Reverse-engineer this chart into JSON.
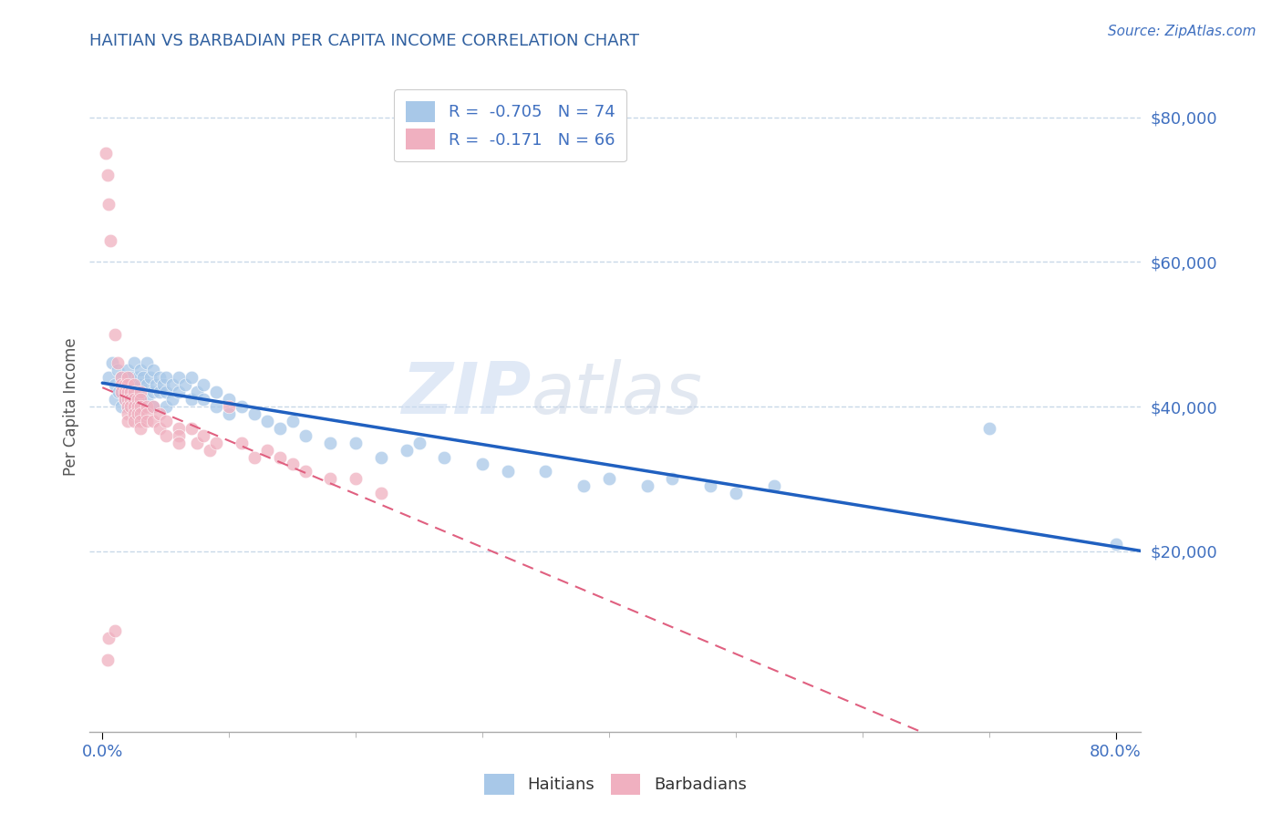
{
  "title": "HAITIAN VS BARBADIAN PER CAPITA INCOME CORRELATION CHART",
  "source": "Source: ZipAtlas.com",
  "ylabel": "Per Capita Income",
  "xlim": [
    -0.01,
    0.82
  ],
  "ylim": [
    -5000,
    85000
  ],
  "yticks": [
    20000,
    40000,
    60000,
    80000
  ],
  "yticklabels": [
    "$20,000",
    "$40,000",
    "$60,000",
    "$80,000"
  ],
  "grid_color": "#c8d8e8",
  "background_color": "#ffffff",
  "watermark_zip": "ZIP",
  "watermark_atlas": "atlas",
  "haitian_color": "#a8c8e8",
  "barbadian_color": "#f0b0c0",
  "haitian_line_color": "#2060c0",
  "barbadian_line_color": "#e06080",
  "title_color": "#3060a0",
  "source_color": "#4070c0",
  "axis_label_color": "#555555",
  "tick_color": "#4070c0",
  "legend_label_color": "#333333",
  "haitian_points": [
    [
      0.005,
      44000
    ],
    [
      0.008,
      46000
    ],
    [
      0.01,
      43000
    ],
    [
      0.01,
      41000
    ],
    [
      0.012,
      45000
    ],
    [
      0.013,
      42000
    ],
    [
      0.015,
      44000
    ],
    [
      0.015,
      40000
    ],
    [
      0.017,
      43000
    ],
    [
      0.018,
      41000
    ],
    [
      0.02,
      45000
    ],
    [
      0.02,
      43000
    ],
    [
      0.02,
      40000
    ],
    [
      0.022,
      44000
    ],
    [
      0.022,
      42000
    ],
    [
      0.025,
      46000
    ],
    [
      0.025,
      43000
    ],
    [
      0.025,
      41000
    ],
    [
      0.028,
      44000
    ],
    [
      0.028,
      42000
    ],
    [
      0.03,
      45000
    ],
    [
      0.03,
      43000
    ],
    [
      0.03,
      41000
    ],
    [
      0.032,
      44000
    ],
    [
      0.035,
      46000
    ],
    [
      0.035,
      43000
    ],
    [
      0.035,
      41000
    ],
    [
      0.038,
      44000
    ],
    [
      0.04,
      45000
    ],
    [
      0.04,
      42000
    ],
    [
      0.04,
      40000
    ],
    [
      0.042,
      43000
    ],
    [
      0.045,
      44000
    ],
    [
      0.045,
      42000
    ],
    [
      0.048,
      43000
    ],
    [
      0.05,
      44000
    ],
    [
      0.05,
      42000
    ],
    [
      0.05,
      40000
    ],
    [
      0.055,
      43000
    ],
    [
      0.055,
      41000
    ],
    [
      0.06,
      44000
    ],
    [
      0.06,
      42000
    ],
    [
      0.065,
      43000
    ],
    [
      0.07,
      44000
    ],
    [
      0.07,
      41000
    ],
    [
      0.075,
      42000
    ],
    [
      0.08,
      43000
    ],
    [
      0.08,
      41000
    ],
    [
      0.09,
      42000
    ],
    [
      0.09,
      40000
    ],
    [
      0.1,
      41000
    ],
    [
      0.1,
      39000
    ],
    [
      0.11,
      40000
    ],
    [
      0.12,
      39000
    ],
    [
      0.13,
      38000
    ],
    [
      0.14,
      37000
    ],
    [
      0.15,
      38000
    ],
    [
      0.16,
      36000
    ],
    [
      0.18,
      35000
    ],
    [
      0.2,
      35000
    ],
    [
      0.22,
      33000
    ],
    [
      0.24,
      34000
    ],
    [
      0.25,
      35000
    ],
    [
      0.27,
      33000
    ],
    [
      0.3,
      32000
    ],
    [
      0.32,
      31000
    ],
    [
      0.35,
      31000
    ],
    [
      0.38,
      29000
    ],
    [
      0.4,
      30000
    ],
    [
      0.43,
      29000
    ],
    [
      0.45,
      30000
    ],
    [
      0.48,
      29000
    ],
    [
      0.5,
      28000
    ],
    [
      0.53,
      29000
    ],
    [
      0.7,
      37000
    ],
    [
      0.8,
      21000
    ]
  ],
  "barbadian_points": [
    [
      0.003,
      75000
    ],
    [
      0.004,
      72000
    ],
    [
      0.005,
      68000
    ],
    [
      0.006,
      63000
    ],
    [
      0.01,
      50000
    ],
    [
      0.012,
      46000
    ],
    [
      0.015,
      44000
    ],
    [
      0.015,
      43000
    ],
    [
      0.015,
      42000
    ],
    [
      0.018,
      43000
    ],
    [
      0.018,
      42000
    ],
    [
      0.018,
      41000
    ],
    [
      0.02,
      44000
    ],
    [
      0.02,
      43000
    ],
    [
      0.02,
      42000
    ],
    [
      0.02,
      41000
    ],
    [
      0.02,
      40000
    ],
    [
      0.02,
      39000
    ],
    [
      0.02,
      38000
    ],
    [
      0.022,
      42000
    ],
    [
      0.022,
      41000
    ],
    [
      0.022,
      40000
    ],
    [
      0.025,
      43000
    ],
    [
      0.025,
      42000
    ],
    [
      0.025,
      41000
    ],
    [
      0.025,
      40000
    ],
    [
      0.025,
      39000
    ],
    [
      0.025,
      38000
    ],
    [
      0.028,
      41000
    ],
    [
      0.028,
      40000
    ],
    [
      0.028,
      39000
    ],
    [
      0.03,
      42000
    ],
    [
      0.03,
      41000
    ],
    [
      0.03,
      40000
    ],
    [
      0.03,
      39000
    ],
    [
      0.03,
      38000
    ],
    [
      0.03,
      37000
    ],
    [
      0.035,
      40000
    ],
    [
      0.035,
      39000
    ],
    [
      0.035,
      38000
    ],
    [
      0.04,
      40000
    ],
    [
      0.04,
      38000
    ],
    [
      0.045,
      39000
    ],
    [
      0.045,
      37000
    ],
    [
      0.05,
      38000
    ],
    [
      0.05,
      36000
    ],
    [
      0.06,
      37000
    ],
    [
      0.06,
      36000
    ],
    [
      0.06,
      35000
    ],
    [
      0.07,
      37000
    ],
    [
      0.075,
      35000
    ],
    [
      0.08,
      36000
    ],
    [
      0.085,
      34000
    ],
    [
      0.09,
      35000
    ],
    [
      0.1,
      40000
    ],
    [
      0.11,
      35000
    ],
    [
      0.12,
      33000
    ],
    [
      0.13,
      34000
    ],
    [
      0.14,
      33000
    ],
    [
      0.15,
      32000
    ],
    [
      0.16,
      31000
    ],
    [
      0.18,
      30000
    ],
    [
      0.2,
      30000
    ],
    [
      0.22,
      28000
    ],
    [
      0.005,
      8000
    ],
    [
      0.01,
      9000
    ],
    [
      0.004,
      5000
    ]
  ],
  "haitian_trend_x": [
    0.0,
    0.82
  ],
  "haitian_trend_y": [
    42000,
    10000
  ],
  "barbadian_trend_x": [
    0.0,
    0.6
  ],
  "barbadian_trend_y": [
    42000,
    5000
  ]
}
